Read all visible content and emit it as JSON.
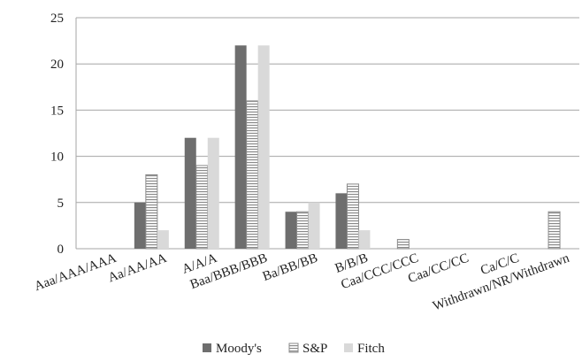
{
  "chart_data": {
    "type": "bar",
    "title": "",
    "xlabel": "",
    "ylabel": "",
    "ylim": [
      0,
      25
    ],
    "yticks": [
      0,
      5,
      10,
      15,
      20,
      25
    ],
    "grid": true,
    "legend_position": "bottom",
    "categories": [
      "Aaa/AAA/AAA",
      "Aa/AA/AA",
      "A/A/A",
      "Baa/BBB/BBB",
      "Ba/BB/BB",
      "B/B/B",
      "Caa/CCC/CCC",
      "Caa/CC/CC",
      "Ca/C/C",
      "Withdrawn/NR/Withdrawn"
    ],
    "series": [
      {
        "name": "Moody's",
        "color": "#6e6e6e",
        "pattern": "solid",
        "values": [
          0,
          5,
          12,
          22,
          4,
          6,
          0,
          0,
          0,
          0
        ]
      },
      {
        "name": "S&P",
        "color": "#ffffff",
        "pattern": "horizontal-lines",
        "values": [
          0,
          8,
          9,
          16,
          4,
          7,
          1,
          0,
          0,
          4
        ]
      },
      {
        "name": "Fitch",
        "color": "#d9d9d9",
        "pattern": "solid",
        "values": [
          0,
          2,
          12,
          22,
          5,
          2,
          0,
          0,
          0,
          0
        ]
      }
    ]
  }
}
